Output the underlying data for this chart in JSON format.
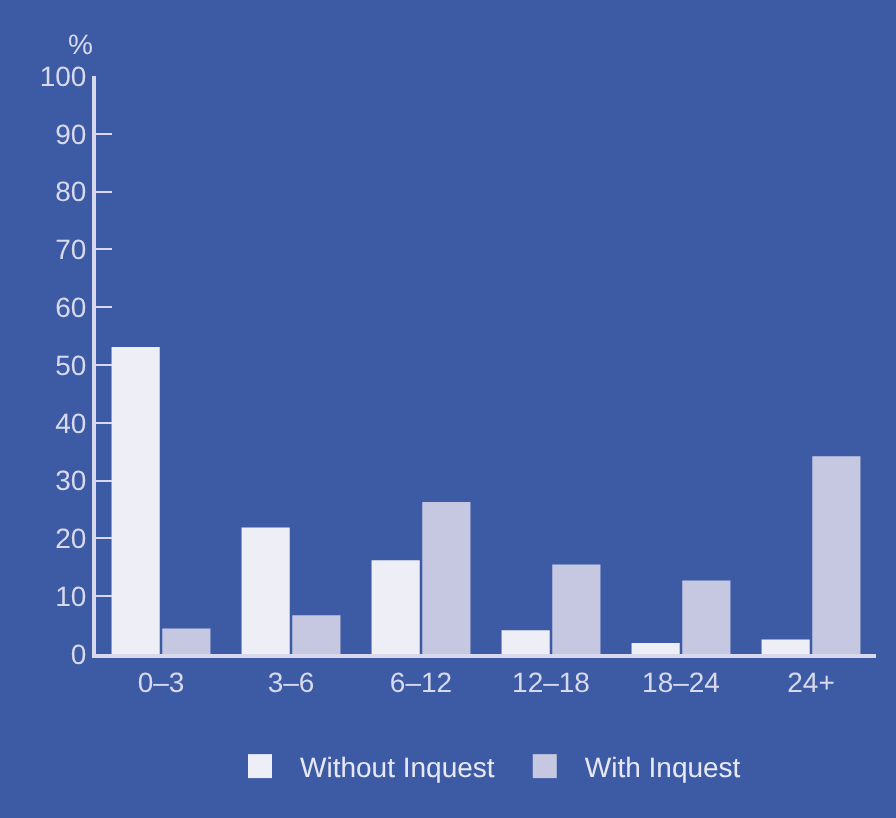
{
  "chart_data": {
    "type": "bar",
    "ylabel": "%",
    "categories": [
      "0–3",
      "3–6",
      "6–12",
      "12–18",
      "18–24",
      "24+"
    ],
    "series": [
      {
        "name": "Without Inquest",
        "color": "#eeeef6",
        "values": [
          53.1,
          21.9,
          16.2,
          4.1,
          1.9,
          2.5
        ]
      },
      {
        "name": "With Inquest",
        "color": "#c6c7e0",
        "values": [
          4.4,
          6.7,
          26.3,
          15.5,
          12.7,
          34.2
        ]
      }
    ],
    "ylim": [
      0,
      100
    ],
    "yticks": [
      0,
      10,
      20,
      30,
      40,
      50,
      60,
      70,
      80,
      90,
      100
    ],
    "grid": false,
    "legend": "bottom"
  }
}
